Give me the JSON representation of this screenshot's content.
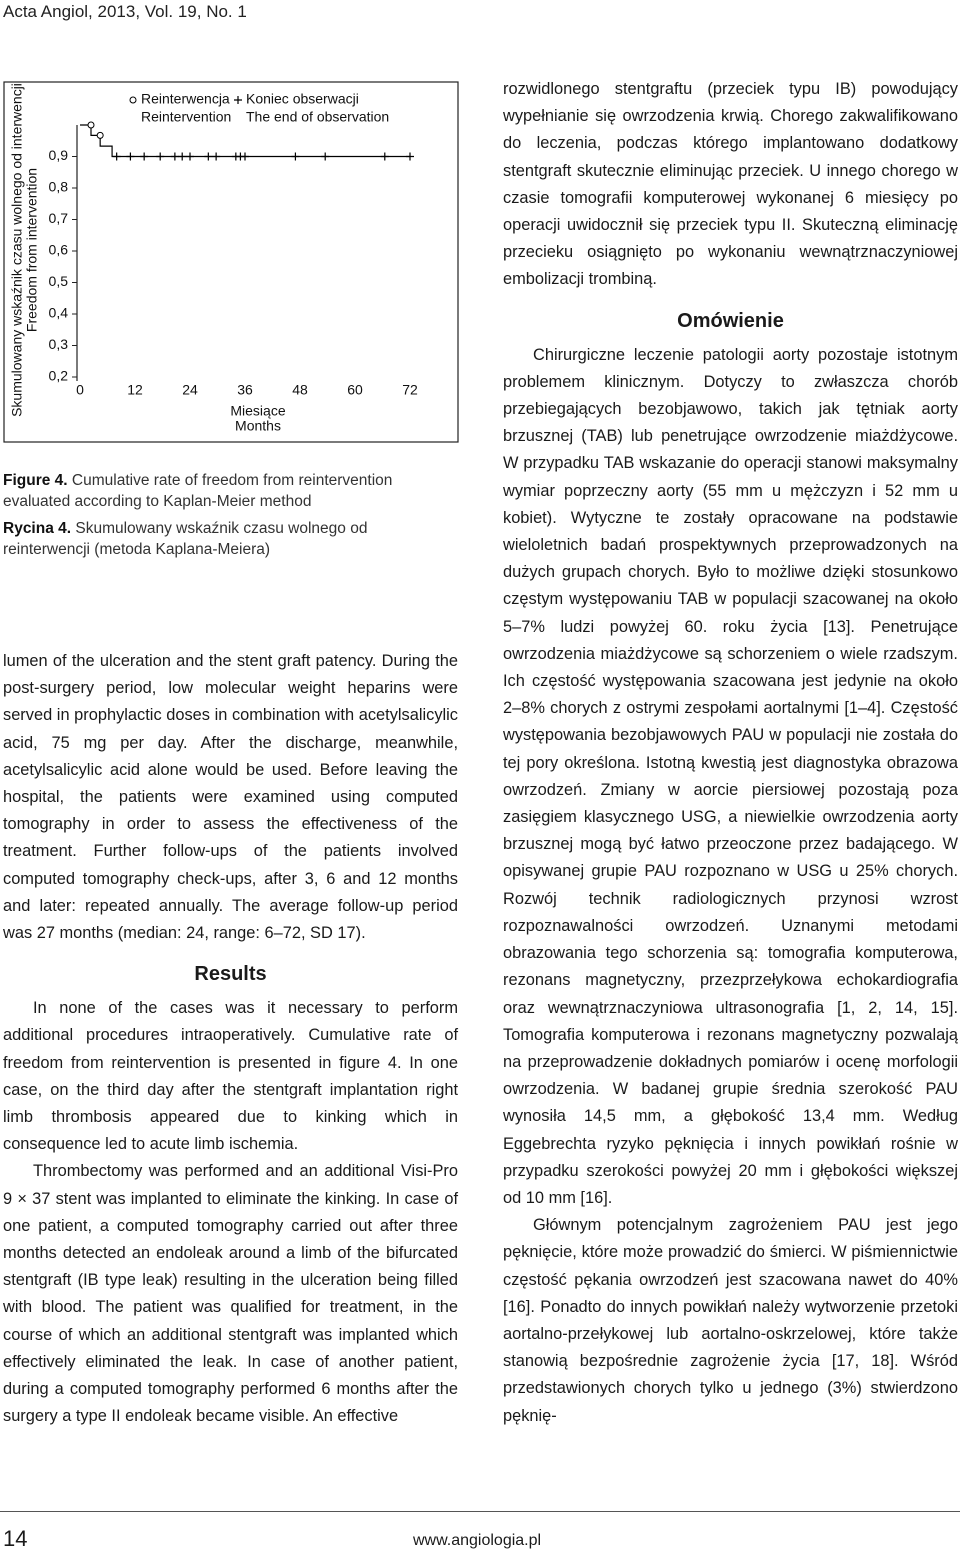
{
  "header": {
    "running_title": "Acta Angiol, 2013, Vol. 19, No. 1"
  },
  "chart_data": {
    "type": "line",
    "y_label": [
      "Skumulowany wskaźnik czasu wolnego od interwencji",
      "Freedom from intervention"
    ],
    "x_label": [
      "Miesiące",
      "Months"
    ],
    "xlim": [
      0,
      72
    ],
    "xticks": [
      0,
      12,
      24,
      36,
      48,
      60,
      72
    ],
    "ylim": [
      0.2,
      1
    ],
    "yticks": [
      {
        "value": 0.2,
        "label": "0,2"
      },
      {
        "value": 0.3,
        "label": "0,3"
      },
      {
        "value": 0.4,
        "label": "0,4"
      },
      {
        "value": 0.5,
        "label": "0,5"
      },
      {
        "value": 0.6,
        "label": "0,6"
      },
      {
        "value": 0.7,
        "label": "0,7"
      },
      {
        "value": 0.8,
        "label": "0,8"
      },
      {
        "value": 0.9,
        "label": "0,9"
      }
    ],
    "series": [
      {
        "color": "#000000",
        "x": [
          0,
          2.4,
          2.4,
          4.4,
          4.4,
          7,
          7,
          72
        ],
        "values": [
          1,
          1,
          0.967,
          0.967,
          0.933,
          0.933,
          0.9,
          0.9
        ]
      },
      {
        "name": "Reinterwencja",
        "name_en": "Reintervention",
        "marker": "circle",
        "color": "#000000",
        "x": [
          2.4,
          4.4
        ],
        "values": [
          1,
          0.967
        ]
      },
      {
        "name": "Koniec obserwacji",
        "name_en": "The end of observation",
        "marker": "plus",
        "color": "#000000",
        "x": [
          8,
          11,
          14,
          17.5,
          20.7,
          22.3,
          24,
          28,
          29.7,
          34,
          35,
          36,
          47,
          53.5,
          66.5,
          72
        ],
        "values": [
          0.9,
          0.9,
          0.9,
          0.9,
          0.9,
          0.9,
          0.9,
          0.9,
          0.9,
          0.9,
          0.9,
          0.9,
          0.9,
          0.9,
          0.9,
          0.9
        ]
      }
    ]
  },
  "captions": [
    {
      "label": "Figure 4.",
      "text": "Cumulative rate of freedom from reintervention evaluated according to Kaplan-Meier method"
    },
    {
      "label": "Rycina 4.",
      "text": "Skumulowany wskaźnik czasu wolnego od reinterwencji (metoda Kaplana-Meiera)"
    }
  ],
  "left_column": {
    "paragraphs": [
      "lumen of the ulceration and the stent graft patency. During the post-surgery period, low molecular weight heparins were served in prophylactic doses in combination with acetylsalicylic acid, 75 mg per day. After the discharge, meanwhile, acetylsalicylic acid alone would be used. Before leaving the hospital, the patients were examined using computed tomography in order to assess the effectiveness of the treatment. Further follow-ups of the patients involved computed tomography check-ups, after 3, 6 and 12 months and later: repeated annually. The average follow-up period was 27 months (median: 24, range: 6–72, SD 17)."
    ],
    "heading": "Results",
    "section_paragraphs": [
      "In none of the cases was it necessary to perform additional procedures intraoperatively. Cumulative rate of freedom from reintervention is presented in figure 4. In one case, on the third day after the stentgraft implantation right limb thrombosis appeared due to kinking which in consequence led to acute limb ischemia.",
      "Thrombectomy was performed and an additional Visi-Pro 9 × 37 stent was implanted to eliminate the kinking. In case of one patient, a computed tomography carried out after three months detected an endoleak around a limb of the bifurcated stentgraft (IB type leak) resulting in the ulceration being filled with blood. The patient was qualified for treatment, in the course of which an additional stentgraft was implanted which effectively eliminated the leak. In case of another patient, during a computed tomography performed 6 months after the surgery a type II endoleak became visible. An effective"
    ]
  },
  "right_column": {
    "paragraphs": [
      "rozwidlonego stentgraftu (przeciek typu IB) powodujący wypełnianie się owrzodzenia krwią. Chorego zakwalifikowano do leczenia, podczas którego implantowano dodatkowy stentgraft skutecznie eliminując przeciek. U innego chorego w czasie tomografii komputerowej wykonanej 6 miesięcy po operacji uwidocznił się przeciek typu II. Skuteczną eliminację przecieku osiągnięto po wykonaniu wewnątrznaczyniowej embolizacji trombiną."
    ],
    "heading": "Omówienie",
    "section_paragraphs": [
      "Chirurgiczne leczenie patologii aorty pozostaje istotnym problemem klinicznym. Dotyczy to zwłaszcza chorób przebiegających bezobjawowo, takich jak tętniak aorty brzusznej (TAB) lub penetrujące owrzodzenie miażdżycowe. W przypadku TAB wskazanie do operacji stanowi maksymalny wymiar poprzeczny aorty (55 mm u mężczyzn i 52 mm u kobiet). Wytyczne te zostały opracowane na podstawie wieloletnich badań prospektywnych przeprowadzonych na dużych grupach chorych. Było to możliwe dzięki stosunkowo częstym występowaniu TAB w populacji szacowanej na około 5–7% ludzi powyżej 60. roku życia [13]. Penetrujące owrzodzenia miażdżycowe są schorzeniem o wiele rzadszym. Ich częstość występowania szacowana jest jedynie na około 2–8% chorych z ostrymi zespołami aortalnymi [1–4]. Częstość występowania bezobjawowych PAU w populacji nie została do tej pory określona. Istotną kwestią jest diagnostyka obrazowa owrzodzeń. Zmiany w aorcie piersiowej pozostają poza zasięgiem klasycznego USG, a niewielkie owrzodzenia aorty brzusznej mogą być łatwo przeoczone przez badającego. W opisywanej grupie PAU rozpoznano w USG u 25% chorych. Rozwój technik radiologicznych przynosi wzrost rozpoznawalności owrzodzeń. Uznanymi metodami obrazowania tego schorzenia są: tomografia komputerowa, rezonans magnetyczny, przezprzełykowa echokardiografia oraz wewnątrznaczyniowa ultrasonografia [1, 2, 14, 15]. Tomografia komputerowa i rezonans magnetyczny pozwalają na przeprowadzenie dokładnych pomiarów i ocenę morfologii owrzodzenia. W badanej grupie średnia szerokość PAU wynosiła 14,5 mm, a głębokość 13,4 mm. Według Eggebrechta ryzyko pęknięcia i innych powikłań rośnie w przypadku szerokości powyżej 20 mm i głębokości większej od 10 mm [16].",
      "Głównym potencjalnym zagrożeniem PAU jest jego pęknięcie, które może prowadzić do śmierci. W piśmiennictwie częstość pękania owrzodzeń jest szacowana nawet do 40% [16]. Ponadto do innych powikłań należy wytworzenie przetoki aortalno-przełykowej lub aortalno-oskrzelowej, które także stanowią bezpośrednie zagrożenie życia [17, 18]. Wśród przedstawionych chorych tylko u jednego (3%) stwierdzono pęknię-"
    ]
  },
  "footer": {
    "page_number": "14",
    "website": "www.angiologia.pl"
  }
}
